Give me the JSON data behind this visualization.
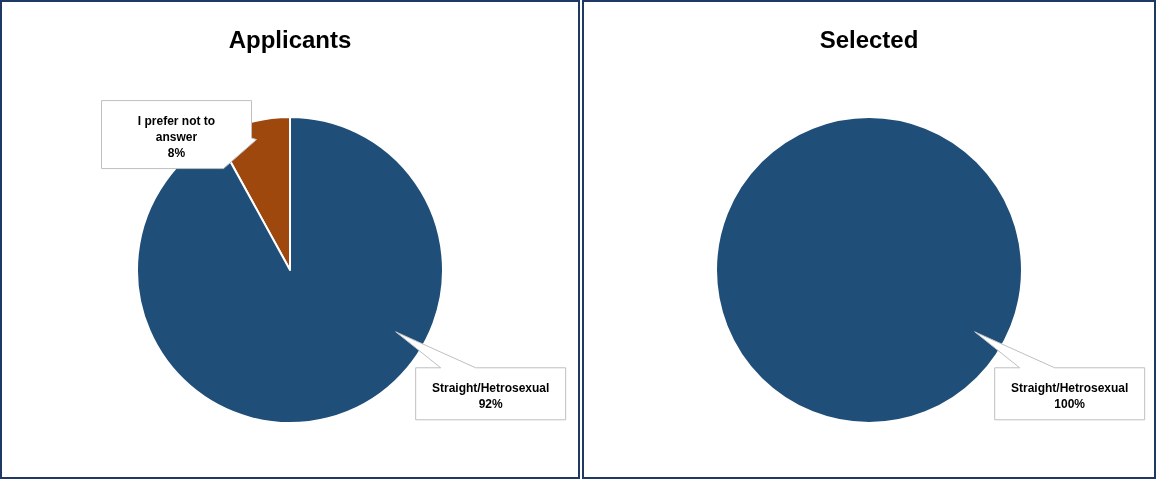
{
  "chart_data": [
    {
      "type": "pie",
      "title": "Applicants",
      "categories": [
        "I prefer not to answer",
        "Straight/Hetrosexual"
      ],
      "values": [
        8,
        92
      ],
      "colors": [
        "#9e480e",
        "#1f4e79"
      ],
      "value_labels": [
        "8%",
        "92%"
      ],
      "legend": false
    },
    {
      "type": "pie",
      "title": "Selected",
      "categories": [
        "Straight/Hetrosexual"
      ],
      "values": [
        100
      ],
      "colors": [
        "#1f4e79"
      ],
      "value_labels": [
        "100%"
      ],
      "legend": false
    }
  ]
}
